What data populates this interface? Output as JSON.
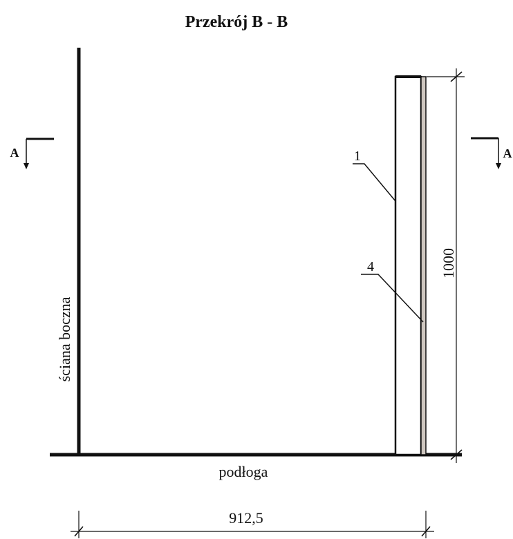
{
  "title": "Przekrój B - B",
  "section_markers": {
    "left_letter": "A",
    "right_letter": "A"
  },
  "labels": {
    "wall": "ściana boczna",
    "floor": "podłoga",
    "callout_1": "1",
    "callout_4": "4"
  },
  "dimensions": {
    "height": "1000",
    "width": "912,5"
  },
  "colors": {
    "line": "#111111",
    "panel_fill": "#ffffff",
    "layer_fill": "#cdc6bf"
  }
}
